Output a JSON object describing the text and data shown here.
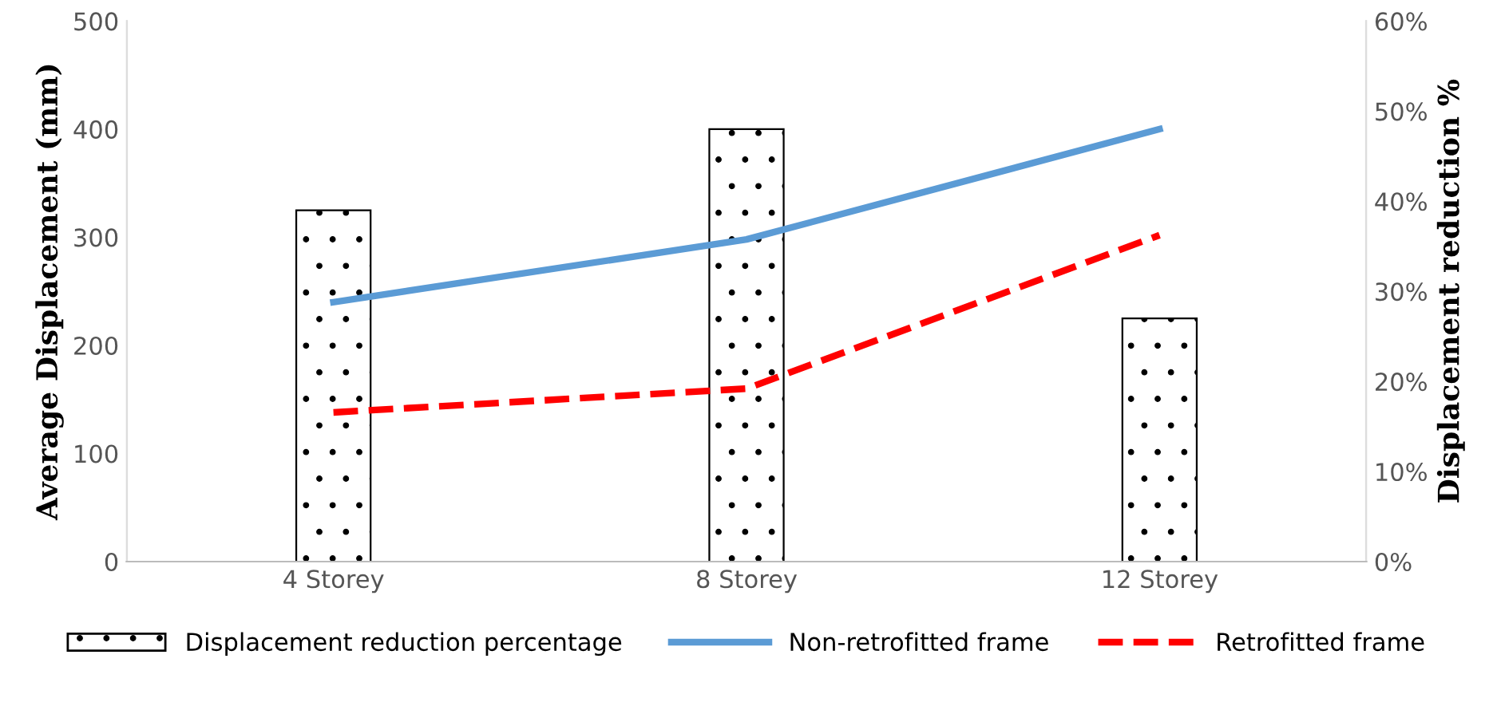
{
  "chart_data": {
    "type": "line",
    "ylabel": "Average Displacement (mm)",
    "y2label": "Displacement reduction %",
    "categories": [
      "4 Storey",
      "8 Storey",
      "12 Storey"
    ],
    "ylim": [
      0,
      500
    ],
    "yticks": [
      0,
      100,
      200,
      300,
      400,
      500
    ],
    "y2lim": [
      0,
      60
    ],
    "y2ticks": [
      {
        "value": 0,
        "label": "0%"
      },
      {
        "value": 10,
        "label": "10%"
      },
      {
        "value": 20,
        "label": "20%"
      },
      {
        "value": 30,
        "label": "30%"
      },
      {
        "value": 40,
        "label": "40%"
      },
      {
        "value": 50,
        "label": "50%"
      },
      {
        "value": 60,
        "label": "60%"
      }
    ],
    "series": [
      {
        "name": "Displacement reduction percentage",
        "type": "bar",
        "axis": "y2",
        "color": "#000000",
        "values": [
          39,
          48,
          27
        ]
      },
      {
        "name": "Non-retrofitted frame",
        "color": "#5b9bd5",
        "line_style": "solid",
        "values": [
          240,
          298,
          400
        ]
      },
      {
        "name": "Retrofitted frame",
        "color": "#ff0000",
        "line_style": "dashed",
        "values": [
          138,
          160,
          302
        ]
      }
    ],
    "grid": false,
    "legend": "bottom",
    "marker": "none"
  }
}
